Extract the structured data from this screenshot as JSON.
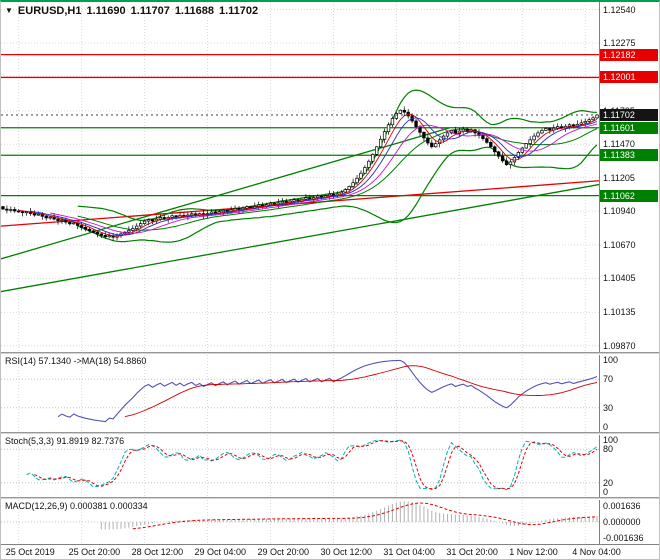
{
  "header": {
    "arrow_glyph": "▼",
    "symbol_period": "EURUSD,H1",
    "open": "1.11690",
    "high": "1.11707",
    "low": "1.11688",
    "close": "1.11702"
  },
  "colors": {
    "grid": "#d9d9d9",
    "frame_top": "#00a050",
    "candle_outline": "#000000",
    "candle_up_fill": "#ffffff",
    "candle_down_fill": "#000000",
    "bollinger": "#008000",
    "trend_green": "#008000",
    "line_red": "#e60000",
    "ma_fast": "#d40000",
    "ma_mid": "#2828c8",
    "ma_slow": "#c814c8",
    "current_line": "#3a3a3a",
    "tag_red": "#e60000",
    "tag_green": "#008000",
    "tag_black": "#141414",
    "rsi_line": "#5353b5",
    "rsi_ma": "#d40000",
    "stoch_k": "#00b3b3",
    "stoch_d": "#e60000",
    "macd_hist": "#b0b0b0",
    "macd_signal": "#e60000"
  },
  "chart_data": {
    "type": "candlestick",
    "title": "EURUSD,H1",
    "y_range": {
      "top": 1.126,
      "bottom": 1.0982
    },
    "y_ticks": [
      1.1254,
      1.12275,
      1.1201,
      1.11735,
      1.1147,
      1.11205,
      1.1094,
      1.1067,
      1.10405,
      1.10135,
      1.0987
    ],
    "x_labels": [
      "25 Oct 2019",
      "25 Oct 20:00",
      "28 Oct 12:00",
      "29 Oct 04:00",
      "29 Oct 20:00",
      "30 Oct 12:00",
      "31 Oct 04:00",
      "31 Oct 20:00",
      "1 Nov 12:00",
      "4 Nov 04:00"
    ],
    "x_label_indices": [
      4,
      20,
      36,
      52,
      68,
      84,
      100,
      116,
      132,
      148
    ],
    "closes": [
      1.10955,
      1.10948,
      1.10952,
      1.1094,
      1.10935,
      1.10928,
      1.10934,
      1.1092,
      1.10908,
      1.10915,
      1.10898,
      1.10885,
      1.10892,
      1.10876,
      1.10864,
      1.1087,
      1.10852,
      1.10838,
      1.10846,
      1.10825,
      1.1081,
      1.10795,
      1.10782,
      1.1077,
      1.10758,
      1.10746,
      1.10735,
      1.10744,
      1.10732,
      1.10745,
      1.10758,
      1.10772,
      1.10786,
      1.108,
      1.1082,
      1.1084,
      1.1086,
      1.10872,
      1.1086,
      1.10875,
      1.10888,
      1.10876,
      1.10889,
      1.10902,
      1.1089,
      1.10905,
      1.10894,
      1.10908,
      1.10918,
      1.10906,
      1.10919,
      1.10907,
      1.1092,
      1.10932,
      1.10921,
      1.10934,
      1.10946,
      1.10935,
      1.10948,
      1.1096,
      1.10949,
      1.10962,
      1.10974,
      1.10963,
      1.10976,
      1.10988,
      1.10977,
      1.1099,
      1.11002,
      1.10991,
      1.11004,
      1.11016,
      1.11005,
      1.11018,
      1.1103,
      1.1102,
      1.11033,
      1.11045,
      1.11034,
      1.11047,
      1.11059,
      1.11048,
      1.11061,
      1.11073,
      1.11062,
      1.11075,
      1.1109,
      1.1111,
      1.11135,
      1.11165,
      1.112,
      1.1124,
      1.11285,
      1.11335,
      1.1139,
      1.1145,
      1.1151,
      1.1157,
      1.11625,
      1.11675,
      1.11715,
      1.1174,
      1.11725,
      1.11695,
      1.11655,
      1.1161,
      1.11565,
      1.1152,
      1.1148,
      1.1145,
      1.11475,
      1.11505,
      1.11535,
      1.1156,
      1.1158,
      1.11555,
      1.11575,
      1.1159,
      1.1157,
      1.11585,
      1.1156,
      1.1154,
      1.11515,
      1.11485,
      1.1145,
      1.1141,
      1.11375,
      1.11338,
      1.11308,
      1.1133,
      1.11365,
      1.11405,
      1.1144,
      1.11475,
      1.11505,
      1.11535,
      1.1156,
      1.1158,
      1.11595,
      1.11582,
      1.11598,
      1.1161,
      1.11599,
      1.11613,
      1.11625,
      1.11614,
      1.11628,
      1.1164,
      1.11652,
      1.11665,
      1.1168,
      1.11702
    ],
    "bollinger": {
      "period": 20,
      "deviation": 2
    },
    "moving_averages": [
      {
        "period": 5
      },
      {
        "period": 8
      },
      {
        "period": 13
      }
    ],
    "levels": [
      {
        "price": 1.12182,
        "label": "1.12182",
        "color": "red"
      },
      {
        "price": 1.12001,
        "label": "1.12001",
        "color": "red"
      },
      {
        "price": 1.11601,
        "label": "1.11601",
        "color": "green"
      },
      {
        "price": 1.11383,
        "label": "1.11383",
        "color": "green"
      },
      {
        "price": 1.11062,
        "label": "1.11062",
        "color": "green"
      }
    ],
    "current": {
      "price": 1.11702,
      "label": "1.11702"
    },
    "trendlines": [
      {
        "x1": 0,
        "p1": 1.103,
        "x2": 1.0,
        "p2": 1.1115,
        "color": "green"
      },
      {
        "x1": 0,
        "p1": 1.1056,
        "x2": 0.75,
        "p2": 1.116,
        "color": "green"
      },
      {
        "x1": 0,
        "p1": 1.1082,
        "x2": 1.0,
        "p2": 1.1118,
        "color": "red"
      }
    ],
    "indicators": {
      "rsi": {
        "label": "RSI(14) 57.1340 ->MA(18) 54.8860",
        "period": 14,
        "ma_period": 18,
        "ticks": [
          100,
          70,
          30,
          0
        ],
        "levels": [
          70,
          30
        ],
        "range": [
          0,
          100
        ]
      },
      "stoch": {
        "label": "Stoch(5,3,3) 91.8919 82.7376",
        "k_period": 5,
        "slowing": 3,
        "d_period": 3,
        "ticks": [
          100,
          80,
          20,
          0
        ],
        "levels": [
          80,
          20
        ],
        "range": [
          0,
          100
        ]
      },
      "macd": {
        "label": "MACD(12,26,9) 0.000381 0.000334",
        "fast": 12,
        "slow": 26,
        "signal": 9,
        "scale": 0.001636,
        "tick_labels": [
          "0.001636",
          "0.000000",
          "-0.001636"
        ]
      }
    }
  }
}
